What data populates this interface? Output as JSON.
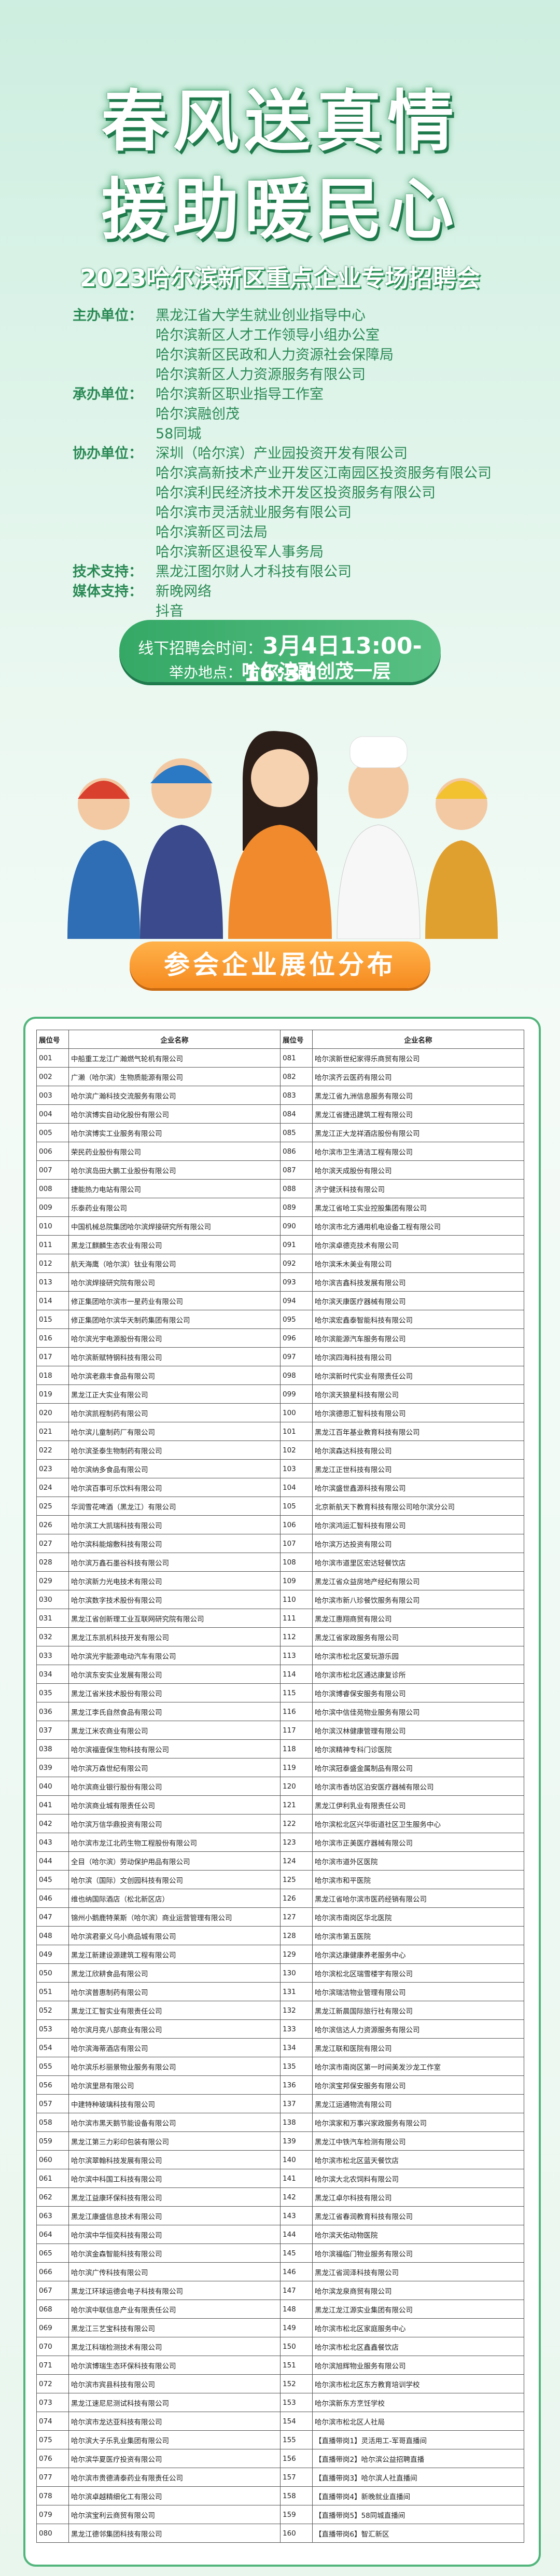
{
  "header": {
    "title_line1": "春风送真情",
    "title_line2": "援助暖民心",
    "subtitle": "2023哈尔滨新区重点企业专场招聘会"
  },
  "organizers": [
    {
      "role": "主办单位：",
      "units": [
        "黑龙江省大学生就业创业指导中心",
        "哈尔滨新区人才工作领导小组办公室",
        "哈尔滨新区民政和人力资源社会保障局",
        "哈尔滨新区人力资源服务有限公司"
      ]
    },
    {
      "role": "承办单位：",
      "units": [
        "哈尔滨新区职业指导工作室",
        "哈尔滨融创茂",
        "58同城"
      ]
    },
    {
      "role": "协办单位：",
      "units": [
        "深圳（哈尔滨）产业园投资开发有限公司",
        "哈尔滨高新技术产业开发区江南园区投资服务有限公司",
        "哈尔滨利民经济技术开发区投资服务有限公司",
        "哈尔滨市灵活就业服务有限公司",
        "哈尔滨新区司法局",
        "哈尔滨新区退役军人事务局"
      ]
    },
    {
      "role": "技术支持：",
      "units": [
        "黑龙江图尔财人才科技有限公司"
      ]
    },
    {
      "role": "媒体支持：",
      "units": [
        "新晚网络",
        "抖音"
      ]
    }
  ],
  "event": {
    "time_label": "线下招聘会时间：",
    "time": "3月4日13:00-16:30",
    "venue_label": "举办地点：",
    "venue": "哈尔滨融创茂一层"
  },
  "section_title": "参会企业展位分布",
  "table": {
    "columns": [
      "展位号",
      "企业名称",
      "展位号",
      "企业名称"
    ],
    "rows": [
      [
        "001",
        "中船重工龙江广瀚燃气轮机有限公司",
        "081",
        "哈尔滨新世纪家得乐商贸有限公司"
      ],
      [
        "002",
        "广濑（哈尔滨）生物质能源有限公司",
        "082",
        "哈尔滨齐云医药有限公司"
      ],
      [
        "003",
        "哈尔滨广瀚科技交流服务有限公司",
        "083",
        "黑龙江省九洲信息服务有限公司"
      ],
      [
        "004",
        "哈尔滨博实自动化股份有限公司",
        "084",
        "黑龙江省捷迅建筑工程有限公司"
      ],
      [
        "005",
        "哈尔滨博实工业服务有限公司",
        "085",
        "黑龙江正大龙祥酒店股份有限公司"
      ],
      [
        "006",
        "荣民药业股份有限公司",
        "086",
        "哈尔滨市卫生清洁工程有限公司"
      ],
      [
        "007",
        "哈尔滨岛田大鹏工业股份有限公司",
        "087",
        "哈尔滨天成股份有限公司"
      ],
      [
        "008",
        "捷能热力电站有限公司",
        "088",
        "济宁健沃科技有限公司"
      ],
      [
        "009",
        "乐泰药业有限公司",
        "089",
        "黑龙江省哈工实业控股集团有限公司"
      ],
      [
        "010",
        "中国机械总院集团哈尔滨焊接研究所有限公司",
        "090",
        "哈尔滨市北方通用机电设备工程有限公司"
      ],
      [
        "011",
        "黑龙江麒麟生态农业有限公司",
        "091",
        "哈尔滨卓德克技术有限公司"
      ],
      [
        "012",
        "航天海鹰（哈尔滨）钛业有限公司",
        "092",
        "哈尔滨禾木美业有限公司"
      ],
      [
        "013",
        "哈尔滨焊接研究院有限公司",
        "093",
        "哈尔滨吉鑫科技发展有限公司"
      ],
      [
        "014",
        "修正集团哈尔滨市一星药业有限公司",
        "094",
        "哈尔滨天康医疗器械有限公司"
      ],
      [
        "015",
        "修正集团哈尔滨华天制药集团有限公司",
        "095",
        "哈尔滨宏鑫泰智能科技有限公司"
      ],
      [
        "016",
        "哈尔滨光宇电源股份有限公司",
        "096",
        "哈尔滨能源汽车服务有限公司"
      ],
      [
        "017",
        "哈尔滨新赋特钢科技有限公司",
        "097",
        "哈尔滨四海科技有限公司"
      ],
      [
        "018",
        "哈尔滨老鼎丰食品有限公司",
        "098",
        "哈尔滨新时代实业有限责任公司"
      ],
      [
        "019",
        "黑龙江正大实业有限公司",
        "099",
        "哈尔滨天狼星科技有限公司"
      ],
      [
        "020",
        "哈尔滨凯程制药有限公司",
        "100",
        "哈尔滨德恩汇智科技有限公司"
      ],
      [
        "021",
        "哈尔滨儿童制药厂有限公司",
        "101",
        "黑龙江百年基业教育科技有限公司"
      ],
      [
        "022",
        "哈尔滨圣泰生物制药有限公司",
        "102",
        "哈尔滨森达科技有限公司"
      ],
      [
        "023",
        "哈尔滨纳多食品有限公司",
        "103",
        "黑龙江正世科技有限公司"
      ],
      [
        "024",
        "哈尔滨百事可乐饮料有限公司",
        "104",
        "哈尔滨盛世鑫源科技有限公司"
      ],
      [
        "025",
        "华润雪花啤酒（黑龙江）有限公司",
        "105",
        "北京新航天下教育科技有限公司哈尔滨分公司"
      ],
      [
        "026",
        "哈尔滨工大凯瑞科技有限公司",
        "106",
        "哈尔滨鸿运汇智科技有限公司"
      ],
      [
        "027",
        "哈尔滨科能熔敷科技有限公司",
        "107",
        "哈尔滨万达投资有限公司"
      ],
      [
        "028",
        "哈尔滨万鑫石墨谷科技有限公司",
        "108",
        "哈尔滨市道里区宏达轻餐饮店"
      ],
      [
        "029",
        "哈尔滨新力光电技术有限公司",
        "109",
        "黑龙江省众益房地产经纪有限公司"
      ],
      [
        "030",
        "哈尔滨数字技术股份有限公司",
        "110",
        "哈尔滨市新八珍餐饮服务有限公司"
      ],
      [
        "031",
        "黑龙江省创新理工业互联网研究院有限公司",
        "111",
        "黑龙江惠翔商贸有限公司"
      ],
      [
        "032",
        "黑龙江东凯机科技开发有限公司",
        "112",
        "黑龙江省家政服务有限公司"
      ],
      [
        "033",
        "哈尔滨光宇能源电动汽车有限公司",
        "113",
        "哈尔滨市松北区爱玩游乐园"
      ],
      [
        "034",
        "哈尔滨东安实业发展有限公司",
        "114",
        "哈尔滨市松北区通达康复诊所"
      ],
      [
        "035",
        "黑龙江省米技术股份有限公司",
        "115",
        "哈尔滨博睿保安服务有限公司"
      ],
      [
        "036",
        "黑龙江李氏自然食品有限公司",
        "116",
        "哈尔滨中信佳苑物业服务有限公司"
      ],
      [
        "037",
        "黑龙江米农商业有限公司",
        "117",
        "哈尔滨汉林健康管理有限公司"
      ],
      [
        "038",
        "哈尔滨福壹保生物科技有限公司",
        "118",
        "哈尔滨精神专科门诊医院"
      ],
      [
        "039",
        "哈尔滨万森世纪有限公司",
        "119",
        "哈尔滨冠泰盛金属制品有限公司"
      ],
      [
        "040",
        "哈尔滨商业银行股份有限公司",
        "120",
        "哈尔滨市香坊区泊安医疗器械有限公司"
      ],
      [
        "041",
        "哈尔滨商业城有限责任公司",
        "121",
        "黑龙江伊利乳业有限责任公司"
      ],
      [
        "042",
        "哈尔滨万信华鼎投资有限公司",
        "122",
        "哈尔滨松北区兴华街道社区卫生服务中心"
      ],
      [
        "043",
        "哈尔滨市龙江北药生物工程股份有限公司",
        "123",
        "哈尔滨市正美医疗器械有限公司"
      ],
      [
        "044",
        "全目（哈尔滨）劳动保护用品有限公司",
        "124",
        "哈尔滨市道外区医院"
      ],
      [
        "045",
        "哈尔滨（国际）文创园科技有限公司",
        "125",
        "哈尔滨市和平医院"
      ],
      [
        "046",
        "维也纳国际酒店（松北新区店）",
        "126",
        "黑龙江省哈尔滨市医药经销有限公司"
      ],
      [
        "047",
        "锦州小鹅鹿特莱斯（哈尔滨）商业运营管理有限公司",
        "127",
        "哈尔滨市南岗区华北医院"
      ],
      [
        "048",
        "哈尔滨君豪义乌小商品城有限公司",
        "128",
        "哈尔滨市第五医院"
      ],
      [
        "049",
        "黑龙江新建设源建筑工程有限公司",
        "129",
        "哈尔滨达康健康养老服务中心"
      ],
      [
        "050",
        "黑龙江欣耕食品有限公司",
        "130",
        "哈尔滨松北区瑞雪楼宇有限公司"
      ],
      [
        "051",
        "哈尔滨普惠制药有限公司",
        "131",
        "哈尔滨瑞洁物业管理有限公司"
      ],
      [
        "052",
        "黑龙江汇智实业有限责任公司",
        "132",
        "黑龙江新晨国际旅行社有限公司"
      ],
      [
        "053",
        "哈尔滨月亮八部商业有限公司",
        "133",
        "哈尔滨信达人力资源服务有限公司"
      ],
      [
        "054",
        "哈尔滨海蒂酒店有限公司",
        "134",
        "黑龙江联和医院有限公司"
      ],
      [
        "055",
        "哈尔滨乐杉丽景物业服务有限公司",
        "135",
        "哈尔滨市南岗区第一时间美发沙龙工作室"
      ],
      [
        "056",
        "哈尔滨里昂有限公司",
        "136",
        "哈尔滨宝邦保安服务有限公司"
      ],
      [
        "057",
        "中建特种玻璃科技有限公司",
        "137",
        "黑龙江运通物流有限公司"
      ],
      [
        "058",
        "哈尔滨市黑天鹅节能设备有限公司",
        "138",
        "哈尔滨家和万事兴家政服务有限公司"
      ],
      [
        "059",
        "黑龙江第三力彩印包装有限公司",
        "139",
        "黑龙江中铁汽车检测有限公司"
      ],
      [
        "060",
        "哈尔滨翠翰科技发展有限公司",
        "140",
        "哈尔滨市松北区蓝天餐饮店"
      ],
      [
        "061",
        "哈尔滨中科国工科技有限公司",
        "141",
        "哈尔滨大北农饲料有限公司"
      ],
      [
        "062",
        "黑龙江益康环保科技有限公司",
        "142",
        "黑龙江卓尔科技有限公司"
      ],
      [
        "063",
        "黑龙江康盛信息技术有限公司",
        "143",
        "黑龙江省春润教育科技有限公司"
      ],
      [
        "064",
        "哈尔滨中华恒奕科技有限公司",
        "144",
        "哈尔滨天佑动物医院"
      ],
      [
        "065",
        "哈尔滨金森智能科技有限公司",
        "145",
        "哈尔滨福临门物业服务有限公司"
      ],
      [
        "066",
        "哈尔滨广传科技有限公司",
        "146",
        "黑龙江省润泽科技有限公司"
      ],
      [
        "067",
        "黑龙江环球运德会电子科技有限公司",
        "147",
        "哈尔滨龙泉商贸有限公司"
      ],
      [
        "068",
        "哈尔滨中联信息产业有限责任公司",
        "148",
        "黑龙江龙江源实业集团有限公司"
      ],
      [
        "069",
        "黑龙江三艺宝科技有限公司",
        "149",
        "哈尔滨市松北区家庭服务中心"
      ],
      [
        "070",
        "黑龙江科瑞检测技术有限公司",
        "150",
        "哈尔滨市松北区鑫鑫餐饮店"
      ],
      [
        "071",
        "哈尔滨博瑞生态环保科技有限公司",
        "151",
        "哈尔滨旭辉物业服务有限公司"
      ],
      [
        "072",
        "哈尔滨市宾县科技有限公司",
        "152",
        "哈尔滨市松北区东方教育培训学校"
      ],
      [
        "073",
        "黑龙江速尼尼测试科技有限公司",
        "153",
        "哈尔滨新东方烹饪学校"
      ],
      [
        "074",
        "哈尔滨市龙达亚科技有限公司",
        "154",
        "哈尔滨市松北区人社局"
      ],
      [
        "075",
        "哈尔滨大子乐乳业集团有限公司",
        "155",
        "【直播带岗1】灵活用工-军哥直播间"
      ],
      [
        "076",
        "哈尔滨华夏医疗投资有限公司",
        "156",
        "【直播带岗2】哈尔滨公益招聘直播"
      ],
      [
        "077",
        "哈尔滨市贵德清泰药业有限责任公司",
        "157",
        "【直播带岗3】哈尔滨人社直播间"
      ],
      [
        "078",
        "哈尔滨卓越精细化工有限公司",
        "158",
        "【直播带岗4】新晚就业直播间"
      ],
      [
        "079",
        "哈尔滨宝利云商贸有限公司",
        "159",
        "【直播带岗5】58同城直播间"
      ],
      [
        "080",
        "黑龙江德邻集团科技有限公司",
        "160",
        "【直播带岗6】智汇新区"
      ]
    ]
  }
}
